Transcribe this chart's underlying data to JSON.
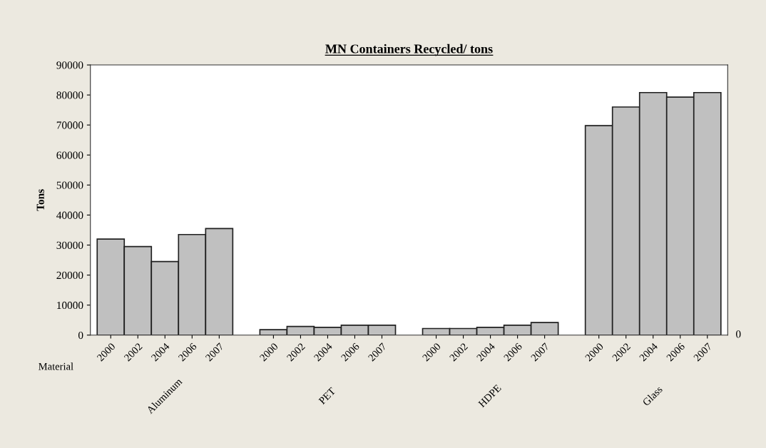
{
  "chart_data": {
    "type": "bar",
    "title": "MN Containers Recycled/ tons",
    "xlabel": "Material",
    "ylabel": "Tons",
    "categories": [
      "2000",
      "2002",
      "2004",
      "2006",
      "2007",
      null,
      "2000",
      "2002",
      "2004",
      "2006",
      "2007",
      null,
      "2000",
      "2002",
      "2004",
      "2006",
      "2007",
      null,
      "2000",
      "2002",
      "2004",
      "2006",
      "2007"
    ],
    "series": [
      {
        "color": "#c0c0c0",
        "values": [
          32000,
          29500,
          24500,
          33500,
          35500,
          null,
          1800,
          2900,
          2600,
          3300,
          3300,
          null,
          2200,
          2200,
          2600,
          3300,
          4200,
          null,
          69800,
          76000,
          80800,
          79300,
          80800
        ]
      }
    ],
    "ylim": [
      0,
      90000
    ],
    "yticks": [
      0,
      10000,
      20000,
      30000,
      40000,
      50000,
      60000,
      70000,
      80000,
      90000
    ],
    "annotations": [
      "Aluminum",
      "PET",
      "HDPE",
      "Glass",
      "0"
    ],
    "grid": false,
    "legend": false
  }
}
